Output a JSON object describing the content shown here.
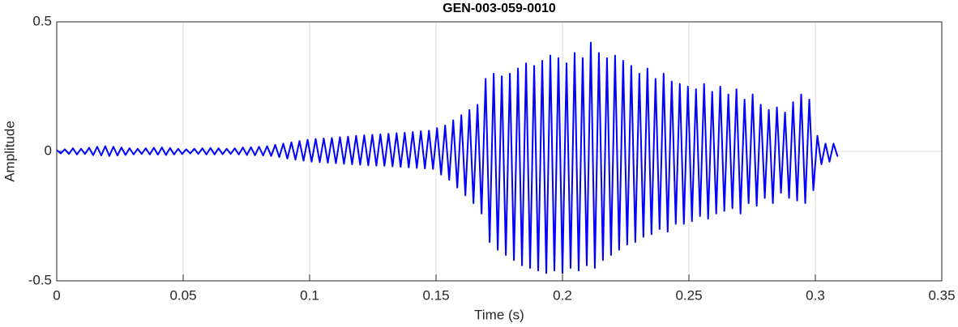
{
  "chart_data": {
    "type": "line",
    "title": "GEN-003-059-0010",
    "xlabel": "Time (s)",
    "ylabel": "Amplitude",
    "xlim": [
      0,
      0.35
    ],
    "xticks": [
      0,
      0.05,
      0.1,
      0.15,
      0.2,
      0.25,
      0.3,
      0.35
    ],
    "ylim": [
      -0.5,
      0.5
    ],
    "yticks": [
      -0.5,
      0,
      0.5
    ],
    "grid": true,
    "color": "#0000ff",
    "x": [
      0,
      0.0016,
      0.0032,
      0.0048,
      0.0064,
      0.008,
      0.0096,
      0.0112,
      0.0128,
      0.0144,
      0.016,
      0.0176,
      0.0192,
      0.0208,
      0.0224,
      0.024,
      0.0256,
      0.0272,
      0.0288,
      0.0304,
      0.032,
      0.0336,
      0.0352,
      0.0368,
      0.0384,
      0.04,
      0.0416,
      0.0432,
      0.0448,
      0.0464,
      0.048,
      0.0496,
      0.0512,
      0.0528,
      0.0544,
      0.056,
      0.0576,
      0.0592,
      0.0608,
      0.0624,
      0.064,
      0.0656,
      0.0672,
      0.0688,
      0.0704,
      0.072,
      0.0736,
      0.0752,
      0.0768,
      0.0784,
      0.08,
      0.0816,
      0.0832,
      0.0848,
      0.0864,
      0.088,
      0.0896,
      0.0912,
      0.0928,
      0.0944,
      0.096,
      0.0976,
      0.0992,
      0.1008,
      0.1024,
      0.104,
      0.1056,
      0.1072,
      0.1088,
      0.1104,
      0.112,
      0.1136,
      0.1152,
      0.1168,
      0.1184,
      0.12,
      0.1216,
      0.1232,
      0.1248,
      0.1264,
      0.128,
      0.1296,
      0.1312,
      0.1328,
      0.1344,
      0.136,
      0.1376,
      0.1392,
      0.1408,
      0.1424,
      0.144,
      0.1456,
      0.1472,
      0.1488,
      0.1504,
      0.152,
      0.1536,
      0.1552,
      0.1568,
      0.1584,
      0.16,
      0.1616,
      0.1632,
      0.1648,
      0.1664,
      0.168,
      0.1696,
      0.1712,
      0.1728,
      0.1744,
      0.176,
      0.1776,
      0.1792,
      0.1808,
      0.1824,
      0.184,
      0.1856,
      0.1872,
      0.1888,
      0.1904,
      0.192,
      0.1936,
      0.1952,
      0.1968,
      0.1984,
      0.2,
      0.2016,
      0.2032,
      0.2048,
      0.2064,
      0.208,
      0.2096,
      0.2112,
      0.2128,
      0.2144,
      0.216,
      0.2176,
      0.2192,
      0.2208,
      0.2224,
      0.224,
      0.2256,
      0.2272,
      0.2288,
      0.2304,
      0.232,
      0.2336,
      0.2352,
      0.2368,
      0.2384,
      0.24,
      0.2416,
      0.2432,
      0.2448,
      0.2464,
      0.248,
      0.2496,
      0.2512,
      0.2528,
      0.2544,
      0.256,
      0.2576,
      0.2592,
      0.2608,
      0.2624,
      0.264,
      0.2656,
      0.2672,
      0.2688,
      0.2704,
      0.272,
      0.2736,
      0.2752,
      0.2768,
      0.2784,
      0.28,
      0.2816,
      0.2832,
      0.2848,
      0.2864,
      0.288,
      0.2896,
      0.2912,
      0.2928,
      0.2944,
      0.296,
      0.2976,
      0.2992,
      0.3008,
      0.3024,
      0.304,
      0.3056,
      0.3072,
      0.3088
    ],
    "values": [
      0.005,
      -0.008,
      0.008,
      -0.01,
      0.012,
      -0.012,
      0.01,
      -0.01,
      0.014,
      -0.015,
      0.018,
      -0.016,
      0.02,
      -0.018,
      0.018,
      -0.016,
      0.015,
      -0.014,
      0.012,
      -0.012,
      0.01,
      -0.01,
      0.012,
      -0.012,
      0.014,
      -0.013,
      0.015,
      -0.014,
      0.013,
      -0.012,
      0.01,
      -0.01,
      0.008,
      -0.008,
      0.01,
      -0.01,
      0.012,
      -0.012,
      0.013,
      -0.012,
      0.012,
      -0.011,
      0.01,
      -0.01,
      0.012,
      -0.012,
      0.015,
      -0.014,
      0.016,
      -0.015,
      0.018,
      -0.016,
      0.02,
      -0.018,
      0.025,
      -0.022,
      0.03,
      -0.028,
      0.035,
      -0.032,
      0.04,
      -0.036,
      0.045,
      -0.04,
      0.048,
      -0.042,
      0.05,
      -0.044,
      0.052,
      -0.046,
      0.055,
      -0.048,
      0.057,
      -0.05,
      0.06,
      -0.052,
      0.062,
      -0.054,
      0.064,
      -0.055,
      0.066,
      -0.056,
      0.068,
      -0.058,
      0.07,
      -0.06,
      0.072,
      -0.062,
      0.075,
      -0.064,
      0.078,
      -0.066,
      0.08,
      -0.068,
      0.09,
      -0.09,
      0.1,
      -0.11,
      0.12,
      -0.14,
      0.14,
      -0.17,
      0.16,
      -0.2,
      0.18,
      -0.24,
      0.28,
      -0.35,
      0.3,
      -0.38,
      0.29,
      -0.4,
      0.3,
      -0.42,
      0.32,
      -0.44,
      0.34,
      -0.45,
      0.33,
      -0.46,
      0.35,
      -0.47,
      0.37,
      -0.46,
      0.36,
      -0.47,
      0.34,
      -0.45,
      0.38,
      -0.46,
      0.36,
      -0.44,
      0.42,
      -0.45,
      0.38,
      -0.42,
      0.36,
      -0.4,
      0.37,
      -0.38,
      0.35,
      -0.36,
      0.33,
      -0.35,
      0.3,
      -0.33,
      0.32,
      -0.32,
      0.28,
      -0.3,
      0.3,
      -0.31,
      0.27,
      -0.28,
      0.26,
      -0.28,
      0.25,
      -0.27,
      0.24,
      -0.25,
      0.26,
      -0.26,
      0.23,
      -0.24,
      0.25,
      -0.23,
      0.22,
      -0.22,
      0.24,
      -0.24,
      0.2,
      -0.2,
      0.22,
      -0.21,
      0.18,
      -0.18,
      0.16,
      -0.2,
      0.17,
      -0.16,
      0.15,
      -0.18,
      0.19,
      -0.19,
      0.22,
      -0.2,
      0.2,
      -0.15,
      0.06,
      -0.05,
      0.03,
      -0.04,
      0.03,
      -0.02
    ]
  }
}
